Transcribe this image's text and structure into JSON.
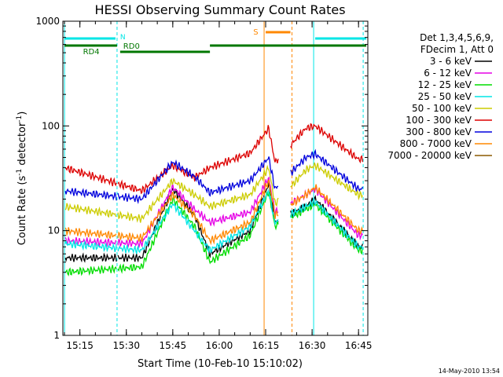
{
  "chart_data": {
    "type": "line",
    "title": "HESSI Observing Summary Count Rates",
    "xlabel": "Start Time (10-Feb-10 15:10:02)",
    "ylabel": "Count Rate (s",
    "ylabel_sup": "-1",
    "ylabel_tail": " detector",
    "ylabel_sup2": "-1",
    "ylabel_close": ")",
    "yscale": "log",
    "ylim": [
      1,
      1000
    ],
    "xlim_minutes": [
      15.16,
      16.8
    ],
    "xlim": [
      "15:09:30",
      "16:48:00"
    ],
    "x_ticks": [
      "15:15",
      "15:30",
      "15:45",
      "16:00",
      "16:15",
      "16:30",
      "16:45"
    ],
    "y_ticks": [
      "1",
      "10",
      "100",
      "1000"
    ],
    "timestamp": "14-May-2010 13:54",
    "legend": {
      "position": "top-right",
      "header": [
        "Det 1,3,4,5,6,9,",
        "FDecim 1, Att 0"
      ],
      "entries": [
        {
          "name": "3 - 6 keV",
          "color": "#000000"
        },
        {
          "name": "6 - 12 keV",
          "color": "#e600e6"
        },
        {
          "name": "12 - 25 keV",
          "color": "#00dd00"
        },
        {
          "name": "25 - 50 keV",
          "color": "#00e6e6"
        },
        {
          "name": "50 - 100 keV",
          "color": "#cccc00"
        },
        {
          "name": "100 - 300 keV",
          "color": "#dd0000"
        },
        {
          "name": "300 - 800 keV",
          "color": "#0000dd"
        },
        {
          "name": "800 - 7000 keV",
          "color": "#ff8800"
        },
        {
          "name": "7000 - 20000 keV",
          "color": "#8b5a00"
        }
      ]
    },
    "annotations": [
      {
        "label": "N",
        "color": "#00e6e6"
      },
      {
        "label": "RD0",
        "color": "#007700"
      },
      {
        "label": "RD4",
        "color": "#007700"
      },
      {
        "label": "S",
        "color": "#ff8800"
      }
    ],
    "series": [
      {
        "name": "3 - 6 keV",
        "color": "#000000",
        "x": [
          "15:10",
          "15:35",
          "15:45",
          "15:52",
          "15:57",
          "16:10",
          "16:16",
          "16:18",
          "16:28",
          "16:31",
          "16:45"
        ],
        "values": [
          5.5,
          5.5,
          25,
          14,
          6,
          10,
          28,
          12,
          17,
          20,
          7
        ]
      },
      {
        "name": "6 - 12 keV",
        "color": "#e600e6",
        "x": [
          "15:10",
          "15:35",
          "15:45",
          "15:52",
          "15:57",
          "16:10",
          "16:16",
          "16:18",
          "16:28",
          "16:31",
          "16:45"
        ],
        "values": [
          8,
          7.5,
          26,
          16,
          12,
          15,
          32,
          15,
          22,
          25,
          9
        ]
      },
      {
        "name": "12 - 25 keV",
        "color": "#00dd00",
        "x": [
          "15:10",
          "15:35",
          "15:45",
          "15:52",
          "15:57",
          "16:10",
          "16:16",
          "16:18",
          "16:28",
          "16:31",
          "16:45"
        ],
        "values": [
          4,
          4.5,
          20,
          11,
          5,
          9,
          24,
          11,
          16,
          18,
          6.5
        ]
      },
      {
        "name": "25 - 50 keV",
        "color": "#00e6e6",
        "x": [
          "15:10",
          "15:35",
          "15:45",
          "15:52",
          "15:57",
          "16:10",
          "16:16",
          "16:18",
          "16:28",
          "16:31",
          "16:45"
        ],
        "values": [
          7.5,
          6.5,
          18,
          10,
          6.5,
          11,
          24,
          12,
          17,
          19,
          7
        ]
      },
      {
        "name": "50 - 100 keV",
        "color": "#cccc00",
        "x": [
          "15:10",
          "15:35",
          "15:45",
          "15:52",
          "15:57",
          "16:10",
          "16:16",
          "16:18",
          "16:28",
          "16:31",
          "16:45"
        ],
        "values": [
          17,
          13,
          30,
          22,
          17,
          22,
          40,
          18,
          38,
          42,
          22
        ]
      },
      {
        "name": "100 - 300 keV",
        "color": "#dd0000",
        "x": [
          "15:10",
          "15:35",
          "15:45",
          "15:52",
          "15:57",
          "16:10",
          "16:16",
          "16:18",
          "16:28",
          "16:31",
          "16:45"
        ],
        "values": [
          40,
          24,
          42,
          32,
          40,
          55,
          95,
          45,
          95,
          100,
          48
        ]
      },
      {
        "name": "300 - 800 keV",
        "color": "#0000dd",
        "x": [
          "15:10",
          "15:35",
          "15:45",
          "15:52",
          "15:57",
          "16:10",
          "16:16",
          "16:18",
          "16:28",
          "16:31",
          "16:45"
        ],
        "values": [
          24,
          20,
          45,
          33,
          23,
          30,
          50,
          25,
          50,
          54,
          25
        ]
      },
      {
        "name": "800 - 7000 keV",
        "color": "#ff8800",
        "x": [
          "15:10",
          "15:35",
          "15:45",
          "15:52",
          "15:57",
          "16:10",
          "16:16",
          "16:18",
          "16:28",
          "16:31",
          "16:45"
        ],
        "values": [
          10,
          8.5,
          22,
          14,
          8,
          12,
          30,
          14,
          22,
          26,
          10
        ]
      }
    ]
  }
}
